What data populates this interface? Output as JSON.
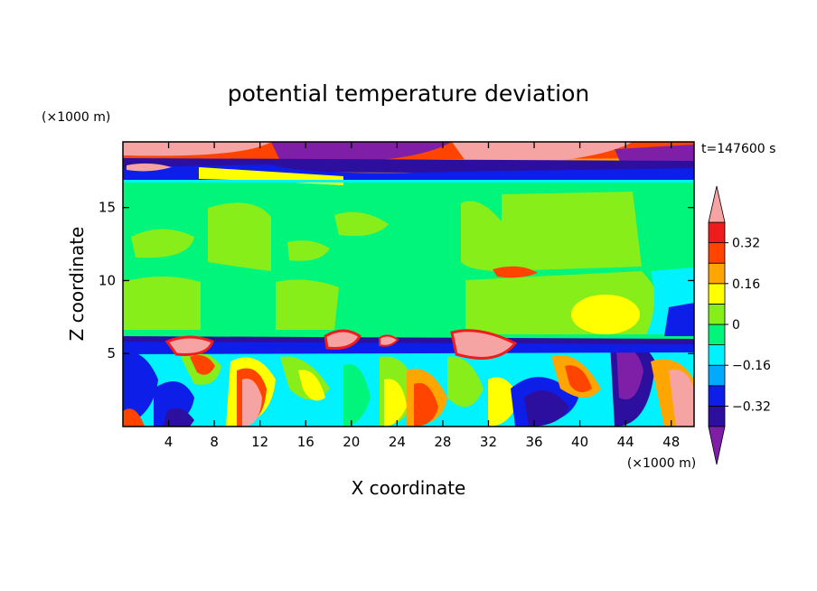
{
  "chart_data": {
    "type": "heatmap",
    "title": "potential temperature deviation",
    "xlabel": "X coordinate",
    "ylabel": "Z coordinate",
    "x_unit": "(×1000 m)",
    "y_unit": "(×1000 m)",
    "time_label": "t=147600 s",
    "xlim": [
      0,
      50
    ],
    "ylim": [
      0,
      19.5
    ],
    "x_ticks": [
      4,
      8,
      12,
      16,
      20,
      24,
      28,
      32,
      36,
      40,
      44,
      48
    ],
    "y_ticks": [
      5,
      10,
      15
    ],
    "colorbar": {
      "levels": [
        -0.4,
        -0.32,
        -0.24,
        -0.16,
        -0.08,
        0,
        0.08,
        0.16,
        0.24,
        0.32,
        0.4
      ],
      "tick_labels": [
        "0.32",
        "0.16",
        "0",
        "−0.16",
        "−0.32"
      ],
      "tick_values": [
        0.32,
        0.16,
        0,
        -0.16,
        -0.32
      ],
      "colors": [
        "#7f1fa8",
        "#2c0f9e",
        "#0c1ee8",
        "#00aaff",
        "#00f2ff",
        "#00f57a",
        "#88ee1a",
        "#ffff00",
        "#ffa500",
        "#ff4400",
        "#ee1c1c",
        "#f5a3a3"
      ]
    }
  }
}
